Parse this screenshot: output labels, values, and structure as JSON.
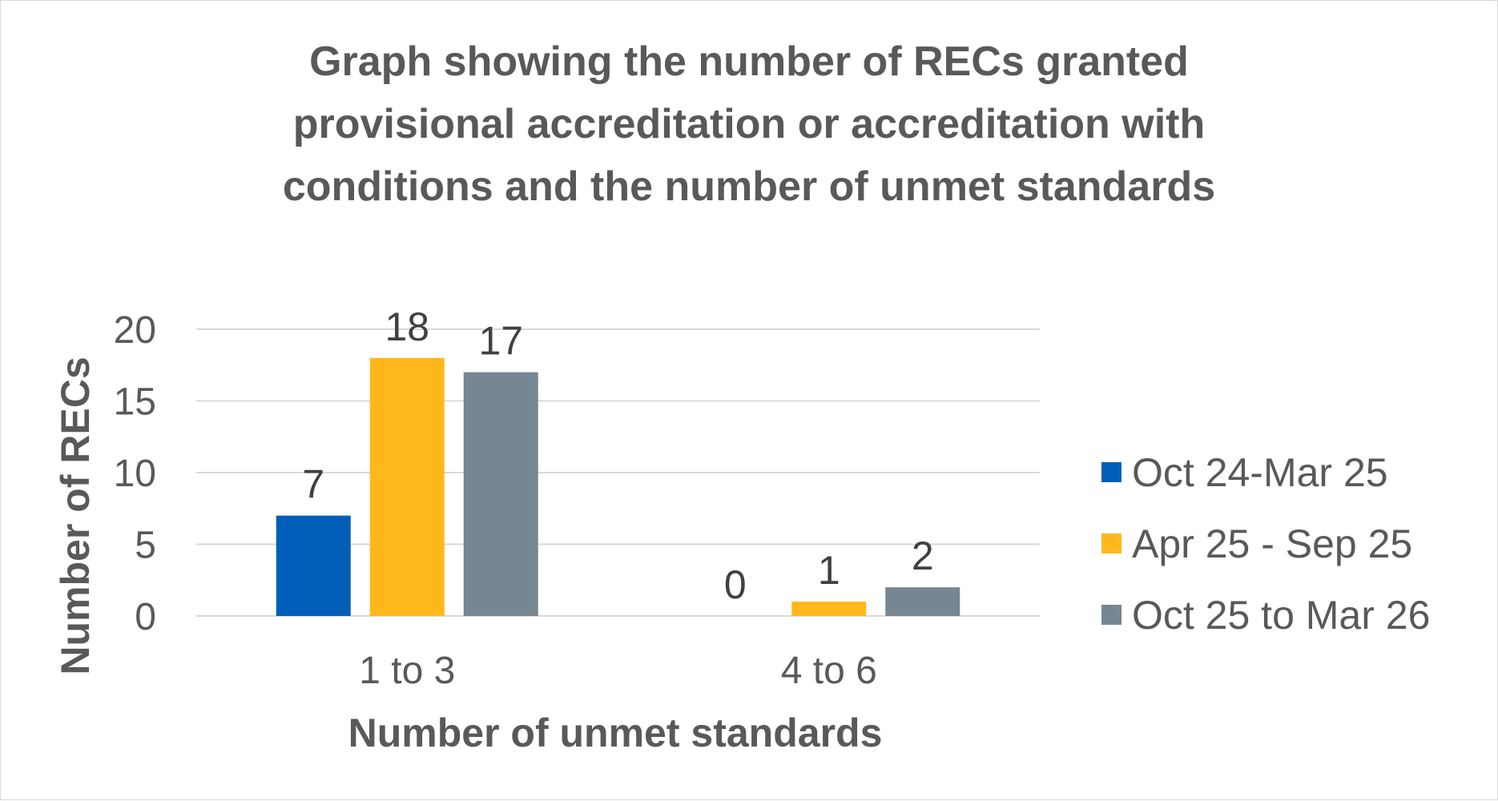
{
  "chart_data": {
    "type": "bar",
    "title_lines": [
      "Graph showing the number of RECs granted",
      "provisional accreditation or accreditation with",
      "conditions and the number of unmet standards"
    ],
    "xlabel": "Number of unmet standards",
    "ylabel": "Number of RECs",
    "categories": [
      "1 to 3",
      "4 to 6"
    ],
    "ylim": [
      0,
      20
    ],
    "yticks": [
      "0",
      "5",
      "10",
      "15",
      "20"
    ],
    "grid": true,
    "legend_position": "right",
    "series": [
      {
        "name": "Oct 24-Mar 25",
        "color": "#005EB8",
        "values": [
          7,
          0
        ]
      },
      {
        "name": "Apr 25 - Sep 25",
        "color": "#FFB81C",
        "values": [
          18,
          1
        ]
      },
      {
        "name": "Oct 25 to Mar 26",
        "color": "#768692",
        "values": [
          17,
          2
        ]
      }
    ]
  }
}
